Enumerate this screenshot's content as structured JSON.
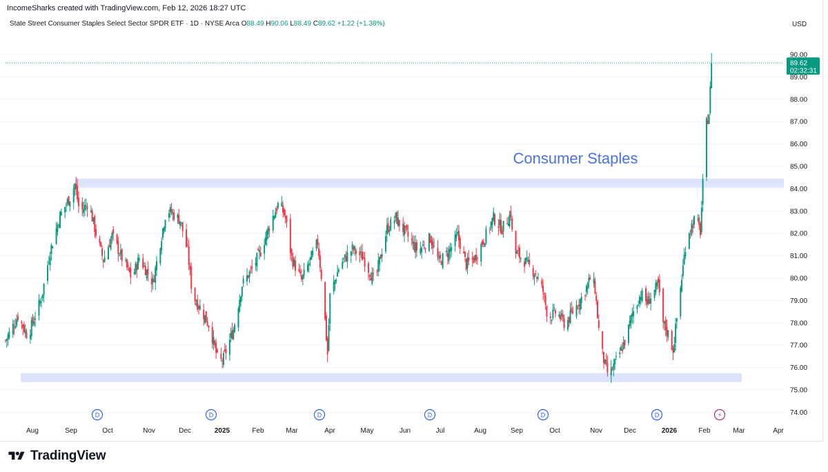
{
  "header": {
    "attribution": "IncomeSharks created with TradingView.com, Feb 12, 2026 18:27 UTC",
    "currency": "USD"
  },
  "symbol": {
    "name": "State Street Consumer Staples Select Sector SPDR ETF · 1D · NYSE Arca",
    "open_label": "O",
    "open": "88.49",
    "high_label": "H",
    "high": "90.06",
    "low_label": "L",
    "low": "88.49",
    "close_label": "C",
    "close": "89.62",
    "change": "+1.22 (+1.38%)"
  },
  "footer": {
    "brand": "TradingView"
  },
  "colors": {
    "up": "#089981",
    "down": "#f23645",
    "zone": "#dbe4fb",
    "annotation": "#4a72e8",
    "price_badge": "#089981",
    "grid": "#f0f3fa"
  },
  "chart_data": {
    "type": "candlestick",
    "title": "State Street Consumer Staples Select Sector SPDR ETF",
    "annotation": "Consumer Staples",
    "interval": "1D",
    "ylim": [
      73.6,
      90.6
    ],
    "y_ticks": [
      "90.00",
      "89.00",
      "88.00",
      "87.00",
      "86.00",
      "85.00",
      "84.00",
      "83.00",
      "82.00",
      "81.00",
      "80.00",
      "79.00",
      "78.00",
      "77.00",
      "76.00",
      "75.00",
      "74.00"
    ],
    "x_labels": [
      "Aug",
      "Sep",
      "Oct",
      "Nov",
      "Dec",
      "2025",
      "Feb",
      "Mar",
      "Apr",
      "May",
      "Jun",
      "Jul",
      "Aug",
      "Sep",
      "Oct",
      "Nov",
      "Dec",
      "2026",
      "Feb",
      "Mar",
      "Apr"
    ],
    "x_label_bold": [
      "2025",
      "2026"
    ],
    "last_price": "89.62",
    "countdown": "02:32:31",
    "zones": [
      {
        "name": "resistance",
        "top": 84.45,
        "bottom": 84.05
      },
      {
        "name": "support",
        "top": 75.75,
        "bottom": 75.35
      }
    ],
    "dividend_marker": "D",
    "dividend_months": [
      "Sep",
      "Dec",
      "Mar",
      "Jun",
      "Sep",
      "Dec"
    ],
    "earnings_marker": "⚡",
    "anchors": [
      [
        "Jul 22",
        77.2
      ],
      [
        "Aug 1",
        78.3
      ],
      [
        "Aug 9",
        77.4
      ],
      [
        "Aug 20",
        79.1
      ],
      [
        "Aug 27",
        81.2
      ],
      [
        "Sep 4",
        82.8
      ],
      [
        "Sep 12",
        83.6
      ],
      [
        "Sep 16",
        84.2
      ],
      [
        "Sep 20",
        82.9
      ],
      [
        "Sep 27",
        83.4
      ],
      [
        "Oct 3",
        82.0
      ],
      [
        "Oct 9",
        80.8
      ],
      [
        "Oct 16",
        81.9
      ],
      [
        "Oct 24",
        80.9
      ],
      [
        "Nov 1",
        80.0
      ],
      [
        "Nov 7",
        80.9
      ],
      [
        "Nov 13",
        80.3
      ],
      [
        "Nov 18",
        79.8
      ],
      [
        "Nov 25",
        81.9
      ],
      [
        "Nov 29",
        83.1
      ],
      [
        "Dec 10",
        82.6
      ],
      [
        "Dec 16",
        81.2
      ],
      [
        "Dec 20",
        79.2
      ],
      [
        "Dec 27",
        78.6
      ],
      [
        "Jan 3",
        77.8
      ],
      [
        "Jan 10",
        76.2
      ],
      [
        "Jan 14",
        76.4
      ],
      [
        "Jan 22",
        77.7
      ],
      [
        "Jan 29",
        79.7
      ],
      [
        "Feb 6",
        80.4
      ],
      [
        "Feb 13",
        81.2
      ],
      [
        "Feb 21",
        82.5
      ],
      [
        "Feb 28",
        83.4
      ],
      [
        "Mar 5",
        82.7
      ],
      [
        "Mar 10",
        80.9
      ],
      [
        "Mar 18",
        79.9
      ],
      [
        "Mar 25",
        80.8
      ],
      [
        "Mar 31",
        81.6
      ],
      [
        "Apr 4",
        79.6
      ],
      [
        "Apr 8",
        76.6
      ],
      [
        "Apr 10",
        79.2
      ],
      [
        "Apr 18",
        80.6
      ],
      [
        "Apr 28",
        81.3
      ],
      [
        "May 7",
        80.9
      ],
      [
        "May 16",
        79.8
      ],
      [
        "May 26",
        82.2
      ],
      [
        "Jun 2",
        82.7
      ],
      [
        "Jun 9",
        82.1
      ],
      [
        "Jun 20",
        81.2
      ],
      [
        "Jun 30",
        81.8
      ],
      [
        "Jul 7",
        80.7
      ],
      [
        "Jul 15",
        81.2
      ],
      [
        "Jul 22",
        81.9
      ],
      [
        "Jul 29",
        80.6
      ],
      [
        "Aug 5",
        80.9
      ],
      [
        "Aug 12",
        81.7
      ],
      [
        "Aug 20",
        82.7
      ],
      [
        "Aug 27",
        82.2
      ],
      [
        "Sep 3",
        82.9
      ],
      [
        "Sep 5",
        81.2
      ],
      [
        "Sep 12",
        80.9
      ],
      [
        "Sep 23",
        80.2
      ],
      [
        "Sep 29",
        79.4
      ],
      [
        "Oct 3",
        78.2
      ],
      [
        "Oct 10",
        78.5
      ],
      [
        "Oct 17",
        77.9
      ],
      [
        "Oct 24",
        78.6
      ],
      [
        "Oct 31",
        79.2
      ],
      [
        "Nov 7",
        80.1
      ],
      [
        "Nov 10",
        79.5
      ],
      [
        "Nov 14",
        77.1
      ],
      [
        "Nov 18",
        76.1
      ],
      [
        "Nov 21",
        75.6
      ],
      [
        "Nov 28",
        76.4
      ],
      [
        "Dec 5",
        77.3
      ],
      [
        "Dec 10",
        78.4
      ],
      [
        "Dec 17",
        79.3
      ],
      [
        "Dec 22",
        78.9
      ],
      [
        "Dec 31",
        79.7
      ],
      [
        "Jan 3",
        78.1
      ],
      [
        "Jan 8",
        77.5
      ],
      [
        "Jan 12",
        76.8
      ],
      [
        "Jan 17",
        79.1
      ],
      [
        "Jan 23",
        81.9
      ],
      [
        "Jan 30",
        82.7
      ],
      [
        "Feb 3",
        82.1
      ],
      [
        "Feb 5",
        84.2
      ],
      [
        "Feb 8",
        86.9
      ],
      [
        "Feb 10",
        87.4
      ],
      [
        "Feb 11",
        88.4
      ],
      [
        "Feb 12",
        89.62
      ]
    ]
  }
}
